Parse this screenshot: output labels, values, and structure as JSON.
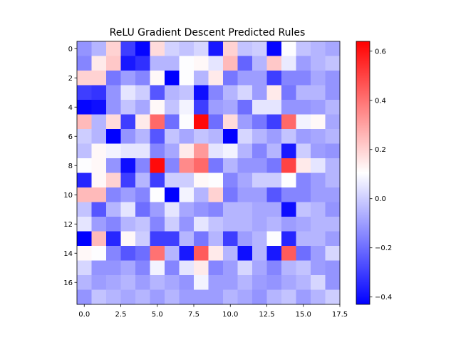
{
  "chart_data": {
    "type": "heatmap",
    "title": "ReLU Gradient Descent Predicted Rules",
    "xlabel": "",
    "ylabel": "",
    "rows": 18,
    "cols": 18,
    "xlim": [
      -0.5,
      17.5
    ],
    "ylim": [
      17.5,
      -0.5
    ],
    "x_ticks": [
      0.0,
      2.5,
      5.0,
      7.5,
      10.0,
      12.5,
      15.0,
      17.5
    ],
    "x_tick_labels": [
      "0.0",
      "2.5",
      "5.0",
      "7.5",
      "10.0",
      "12.5",
      "15.0",
      "17.5"
    ],
    "y_ticks": [
      0,
      2,
      4,
      6,
      8,
      10,
      12,
      14,
      16
    ],
    "y_tick_labels": [
      "0",
      "2",
      "4",
      "6",
      "8",
      "10",
      "12",
      "14",
      "16"
    ],
    "colorbar": {
      "vmin": -0.43,
      "vmax": 0.64,
      "colormap": "bwr",
      "ticks": [
        -0.4,
        -0.2,
        0.0,
        0.2,
        0.4,
        0.6
      ],
      "tick_labels": [
        "−0.4",
        "−0.2",
        "0.0",
        "0.2",
        "0.4",
        "0.6"
      ]
    },
    "values": [
      [
        -0.12,
        -0.05,
        0.2,
        -0.3,
        -0.42,
        0.18,
        0.01,
        -0.02,
        0.02,
        -0.38,
        0.2,
        -0.02,
        0.0,
        -0.42,
        0.1,
        -0.02,
        -0.05,
        -0.08
      ],
      [
        -0.15,
        0.15,
        0.22,
        -0.38,
        -0.33,
        -0.05,
        -0.05,
        0.1,
        0.12,
        0.05,
        0.25,
        -0.22,
        -0.05,
        0.22,
        0.06,
        -0.1,
        -0.05,
        -0.02
      ],
      [
        0.2,
        0.2,
        -0.18,
        -0.1,
        -0.15,
        0.12,
        -0.43,
        0.1,
        -0.05,
        0.15,
        -0.18,
        -0.1,
        -0.1,
        -0.3,
        -0.15,
        -0.15,
        -0.08,
        -0.12
      ],
      [
        -0.3,
        -0.32,
        -0.12,
        0.05,
        0.0,
        -0.25,
        -0.05,
        -0.02,
        -0.4,
        -0.15,
        -0.05,
        0.02,
        -0.1,
        0.15,
        -0.18,
        -0.05,
        -0.05,
        -0.12
      ],
      [
        -0.42,
        -0.4,
        -0.12,
        -0.02,
        -0.08,
        0.12,
        -0.02,
        0.08,
        -0.3,
        -0.1,
        -0.08,
        -0.2,
        0.05,
        0.05,
        -0.12,
        -0.12,
        -0.1,
        -0.05
      ],
      [
        0.25,
        -0.05,
        0.18,
        -0.3,
        0.15,
        0.42,
        -0.2,
        0.1,
        0.62,
        -0.2,
        0.18,
        -0.1,
        -0.18,
        -0.3,
        0.42,
        0.08,
        0.12,
        -0.08
      ],
      [
        0.0,
        -0.05,
        -0.43,
        -0.12,
        -0.05,
        -0.25,
        -0.02,
        -0.08,
        -0.02,
        -0.05,
        -0.43,
        0.02,
        -0.05,
        -0.1,
        -0.02,
        -0.1,
        -0.08,
        -0.05
      ],
      [
        -0.03,
        0.12,
        0.08,
        0.05,
        0.05,
        -0.15,
        -0.08,
        0.15,
        0.32,
        0.05,
        0.08,
        -0.05,
        -0.15,
        -0.05,
        -0.38,
        0.0,
        -0.1,
        -0.12
      ],
      [
        0.1,
        0.12,
        -0.12,
        -0.4,
        -0.15,
        0.62,
        -0.15,
        0.35,
        0.42,
        -0.18,
        -0.05,
        -0.12,
        -0.12,
        -0.18,
        0.5,
        0.15,
        0.05,
        -0.05
      ],
      [
        -0.35,
        0.12,
        0.2,
        -0.3,
        -0.05,
        -0.3,
        0.0,
        0.0,
        0.12,
        0.1,
        -0.15,
        -0.08,
        0.0,
        0.0,
        0.1,
        -0.15,
        -0.1,
        -0.05
      ],
      [
        0.25,
        0.25,
        -0.15,
        -0.1,
        -0.15,
        0.1,
        -0.43,
        0.08,
        -0.05,
        0.2,
        -0.18,
        -0.1,
        -0.1,
        -0.25,
        -0.15,
        -0.15,
        -0.1,
        -0.1
      ],
      [
        -0.02,
        -0.25,
        -0.05,
        0.05,
        -0.2,
        -0.1,
        0.05,
        -0.08,
        -0.12,
        -0.15,
        -0.05,
        -0.05,
        -0.08,
        -0.08,
        -0.4,
        -0.02,
        -0.05,
        -0.12
      ],
      [
        0.05,
        -0.1,
        -0.15,
        -0.05,
        -0.02,
        -0.15,
        0.0,
        -0.12,
        0.05,
        -0.02,
        -0.05,
        -0.05,
        -0.08,
        -0.05,
        -0.1,
        -0.08,
        -0.05,
        -0.05
      ],
      [
        -0.43,
        0.25,
        -0.35,
        0.12,
        0.0,
        -0.3,
        -0.3,
        -0.05,
        -0.18,
        -0.05,
        -0.3,
        -0.1,
        -0.05,
        0.1,
        -0.35,
        -0.05,
        -0.05,
        -0.1
      ],
      [
        0.12,
        0.1,
        -0.15,
        -0.25,
        -0.2,
        0.4,
        -0.05,
        -0.38,
        0.45,
        0.15,
        -0.05,
        -0.4,
        -0.05,
        -0.38,
        0.45,
        -0.2,
        -0.1,
        0.02
      ],
      [
        0.02,
        -0.12,
        -0.12,
        -0.08,
        -0.15,
        0.08,
        -0.15,
        0.05,
        0.15,
        -0.15,
        -0.1,
        0.02,
        -0.08,
        -0.15,
        -0.05,
        -0.02,
        -0.1,
        -0.12
      ],
      [
        -0.05,
        -0.1,
        -0.08,
        -0.05,
        -0.1,
        -0.05,
        -0.08,
        -0.12,
        0.08,
        -0.1,
        -0.1,
        -0.05,
        -0.1,
        -0.12,
        -0.08,
        -0.05,
        0.02,
        -0.12
      ],
      [
        -0.12,
        -0.02,
        -0.05,
        -0.08,
        -0.05,
        -0.1,
        -0.05,
        -0.1,
        -0.1,
        -0.1,
        -0.05,
        -0.08,
        -0.12,
        -0.05,
        -0.02,
        -0.1,
        -0.05,
        0.0
      ]
    ]
  }
}
